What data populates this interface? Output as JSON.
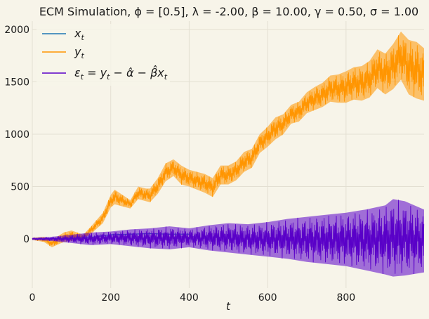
{
  "chart_data": {
    "type": "line",
    "title": "ECM Simulation, ϕ = [0.5], λ = -2.00, β = 10.00, γ = 0.50, σ = 1.00",
    "xlabel": "t",
    "ylabel": "",
    "xlim": [
      0,
      999
    ],
    "ylim": [
      -470,
      2080
    ],
    "xticks": [
      0,
      200,
      400,
      600,
      800
    ],
    "yticks": [
      0,
      500,
      1000,
      1500,
      2000
    ],
    "grid": true,
    "legend_position": "top-left",
    "colors": {
      "background": "#f7f4e9",
      "grid": "#e3dfd2",
      "x": "#1f77b4",
      "y": "#ff9500",
      "eps": "#5a00c8"
    },
    "series": [
      {
        "name": "x_t",
        "legend_label": "x",
        "legend_sub": "t",
        "color": "#1f77b4",
        "x": [
          0,
          100,
          150,
          200,
          250,
          300,
          350,
          400
        ],
        "values": [
          0,
          5,
          15,
          40,
          45,
          50,
          45,
          45
        ]
      },
      {
        "name": "y_t",
        "legend_label": "y",
        "legend_sub": "t",
        "color": "#ff9500",
        "band": true,
        "x": [
          0,
          30,
          50,
          80,
          100,
          130,
          150,
          180,
          200,
          210,
          230,
          250,
          270,
          290,
          300,
          320,
          340,
          360,
          380,
          400,
          420,
          440,
          460,
          480,
          500,
          520,
          540,
          560,
          580,
          600,
          620,
          640,
          660,
          680,
          700,
          720,
          740,
          760,
          780,
          800,
          820,
          840,
          860,
          880,
          900,
          920,
          940,
          960,
          980,
          999
        ],
        "upper": [
          10,
          20,
          -10,
          60,
          80,
          40,
          120,
          250,
          420,
          470,
          420,
          370,
          500,
          480,
          480,
          580,
          720,
          760,
          700,
          660,
          640,
          620,
          580,
          700,
          700,
          740,
          830,
          860,
          1000,
          1070,
          1160,
          1190,
          1280,
          1310,
          1400,
          1450,
          1490,
          1560,
          1570,
          1600,
          1640,
          1650,
          1700,
          1810,
          1770,
          1860,
          1980,
          1900,
          1880,
          1820
        ],
        "lower": [
          -10,
          -30,
          -80,
          -30,
          -20,
          0,
          50,
          150,
          300,
          330,
          310,
          290,
          380,
          360,
          350,
          430,
          550,
          600,
          520,
          500,
          470,
          440,
          400,
          520,
          520,
          560,
          640,
          680,
          820,
          880,
          950,
          1000,
          1100,
          1120,
          1200,
          1230,
          1260,
          1310,
          1300,
          1300,
          1330,
          1320,
          1350,
          1440,
          1380,
          1430,
          1520,
          1380,
          1340,
          1320
        ]
      },
      {
        "name": "eps_t",
        "legend_label": "ε",
        "legend_sub": "t",
        "legend_rest": " = y",
        "legend_sub2": "t",
        "legend_tail": " − α̂ − β̂x",
        "legend_sub3": "t",
        "color": "#5a00c8",
        "band": true,
        "x": [
          0,
          50,
          100,
          150,
          200,
          250,
          300,
          350,
          400,
          450,
          500,
          550,
          600,
          650,
          700,
          750,
          800,
          850,
          900,
          920,
          950,
          999
        ],
        "upper": [
          10,
          20,
          40,
          60,
          70,
          90,
          100,
          120,
          100,
          130,
          150,
          140,
          160,
          190,
          210,
          230,
          250,
          280,
          320,
          380,
          360,
          280
        ],
        "lower": [
          -10,
          -20,
          -40,
          -60,
          -50,
          -70,
          -90,
          -100,
          -80,
          -110,
          -130,
          -150,
          -170,
          -190,
          -220,
          -240,
          -260,
          -300,
          -340,
          -360,
          -350,
          -320
        ]
      }
    ]
  }
}
